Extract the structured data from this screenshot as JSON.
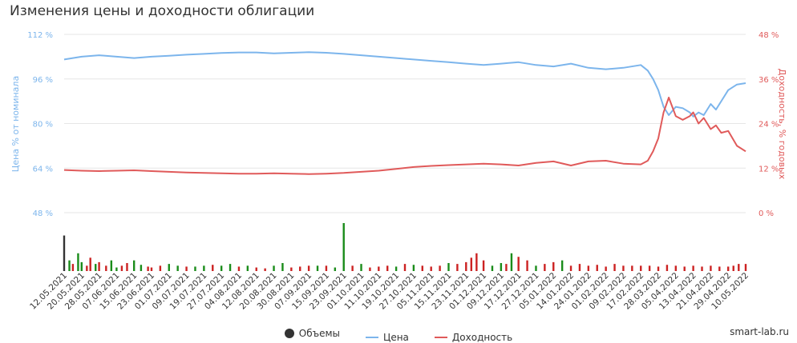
{
  "title": "Изменения цены и доходности облигации",
  "credit": "smart-lab.ru",
  "legend": [
    {
      "name": "Объемы",
      "color": "#333333",
      "kind": "dot"
    },
    {
      "name": "Цена",
      "color": "#7cb5ec",
      "kind": "line"
    },
    {
      "name": "Доходность",
      "color": "#e05a5a",
      "kind": "line"
    }
  ],
  "chart_data": {
    "type": "line",
    "title": "Изменения цены и доходности облигации",
    "y_left": {
      "label": "Цена % от номинала",
      "ticks": [
        "112 %",
        "96 %",
        "80 %",
        "64 %",
        "48 %"
      ],
      "range": [
        48,
        112
      ]
    },
    "y_right": {
      "label": "Доходность, % годовых",
      "ticks": [
        "48 %",
        "36 %",
        "24 %",
        "12 %",
        "0 %"
      ],
      "range": [
        0,
        48
      ]
    },
    "x_ticks": [
      "12.05.2021",
      "20.05.2021",
      "28.05.2021",
      "07.06.2021",
      "15.06.2021",
      "23.06.2021",
      "01.07.2021",
      "09.07.2021",
      "19.07.2021",
      "27.07.2021",
      "04.08.2021",
      "12.08.2021",
      "20.08.2021",
      "30.08.2021",
      "07.09.2021",
      "15.09.2021",
      "23.09.2021",
      "01.10.2021",
      "11.10.2021",
      "19.10.2021",
      "27.10.2021",
      "05.11.2021",
      "15.11.2021",
      "23.11.2021",
      "01.12.2021",
      "09.12.2021",
      "17.12.2021",
      "27.12.2021",
      "05.01.2022",
      "14.01.2022",
      "24.01.2022",
      "01.02.2022",
      "09.02.2022",
      "17.02.2022",
      "28.03.2022",
      "05.04.2022",
      "13.04.2022",
      "21.04.2022",
      "29.04.2022",
      "10.05.2022"
    ],
    "x_range_index": [
      0,
      39
    ],
    "grid": true,
    "legend_position": "bottom-center",
    "series": [
      {
        "name": "Цена",
        "axis": "left",
        "color": "#7cb5ec",
        "x": [
          0,
          1,
          2,
          3,
          4,
          5,
          6,
          7,
          8,
          9,
          10,
          11,
          12,
          13,
          14,
          15,
          16,
          17,
          18,
          19,
          20,
          21,
          22,
          23,
          24,
          25,
          26,
          27,
          28,
          29,
          30,
          31,
          32,
          33,
          33.4,
          33.7,
          34,
          34.3,
          34.6,
          35,
          35.4,
          35.8,
          36,
          36.3,
          36.6,
          37,
          37.3,
          37.6,
          38,
          38.5,
          39
        ],
        "values": [
          103,
          104,
          104.5,
          104,
          103.5,
          104,
          104.3,
          104.7,
          105,
          105.3,
          105.5,
          105.5,
          105.2,
          105.4,
          105.6,
          105.4,
          105,
          104.5,
          104,
          103.5,
          103,
          102.5,
          102,
          101.5,
          101,
          101.5,
          102,
          101,
          100.5,
          101.5,
          100,
          99.5,
          100,
          101,
          99,
          96,
          92,
          86,
          83,
          86,
          85.5,
          84,
          82.5,
          84,
          83,
          87,
          85,
          88,
          92,
          94,
          94.5
        ]
      },
      {
        "name": "Доходность",
        "axis": "right",
        "color": "#e05a5a",
        "x": [
          0,
          1,
          2,
          3,
          4,
          5,
          6,
          7,
          8,
          9,
          10,
          11,
          12,
          13,
          14,
          15,
          16,
          17,
          18,
          19,
          20,
          21,
          22,
          23,
          24,
          25,
          26,
          27,
          28,
          29,
          30,
          31,
          32,
          33,
          33.4,
          33.7,
          34,
          34.3,
          34.6,
          35,
          35.4,
          35.8,
          36,
          36.3,
          36.6,
          37,
          37.3,
          37.6,
          38,
          38.5,
          39
        ],
        "values": [
          11.5,
          11.3,
          11.2,
          11.3,
          11.4,
          11.2,
          11.0,
          10.8,
          10.7,
          10.6,
          10.5,
          10.5,
          10.6,
          10.5,
          10.4,
          10.5,
          10.7,
          11.0,
          11.3,
          11.8,
          12.3,
          12.6,
          12.8,
          13.0,
          13.2,
          13.0,
          12.7,
          13.4,
          13.8,
          12.7,
          13.8,
          14.0,
          13.2,
          13.0,
          14.0,
          16.5,
          20.0,
          27.0,
          31.0,
          26.0,
          25.0,
          26.0,
          27.0,
          24.0,
          25.5,
          22.5,
          23.5,
          21.5,
          22.0,
          18.0,
          16.5
        ]
      },
      {
        "name": "Объемы",
        "axis": "volume",
        "color_positive": "#1a8c1a",
        "color_negative": "#cc2222",
        "x": [
          0,
          0.3,
          0.5,
          0.8,
          1,
          1.3,
          1.5,
          1.8,
          2,
          2.4,
          2.7,
          3,
          3.3,
          3.6,
          4,
          4.4,
          4.8,
          5,
          5.5,
          6,
          6.5,
          7,
          7.5,
          8,
          8.5,
          9,
          9.5,
          10,
          10.5,
          11,
          11.5,
          12,
          12.5,
          13,
          13.5,
          14,
          14.5,
          15,
          15.5,
          16,
          16.5,
          17,
          17.5,
          18,
          18.5,
          19,
          19.5,
          20,
          20.5,
          21,
          21.5,
          22,
          22.5,
          23,
          23.3,
          23.6,
          24,
          24.5,
          25,
          25.3,
          25.6,
          26,
          26.5,
          27,
          27.5,
          28,
          28.5,
          29,
          29.5,
          30,
          30.5,
          31,
          31.5,
          32,
          32.5,
          33,
          33.5,
          34,
          34.5,
          35,
          35.5,
          36,
          36.5,
          37,
          37.5,
          38,
          38.3,
          38.6,
          39
        ],
        "values": [
          40,
          12,
          -8,
          20,
          10,
          -6,
          -15,
          8,
          -10,
          -6,
          12,
          4,
          -6,
          -9,
          12,
          7,
          -5,
          -4,
          -6,
          8,
          6,
          -5,
          5,
          6,
          -7,
          6,
          8,
          -5,
          6,
          -4,
          -3,
          6,
          9,
          -4,
          -5,
          -6,
          6,
          -6,
          4,
          54,
          -6,
          8,
          -4,
          -5,
          -6,
          5,
          -8,
          7,
          -6,
          -5,
          -6,
          9,
          -8,
          -10,
          -15,
          -20,
          -12,
          6,
          9,
          -8,
          20,
          -16,
          -12,
          6,
          -8,
          -10,
          12,
          -6,
          -8,
          -6,
          -7,
          -5,
          -8,
          -6,
          -6,
          -6,
          -6,
          -5,
          -7,
          -6,
          -5,
          -6,
          -5,
          -6,
          -5,
          -5,
          -6,
          -8,
          -8
        ]
      }
    ]
  }
}
